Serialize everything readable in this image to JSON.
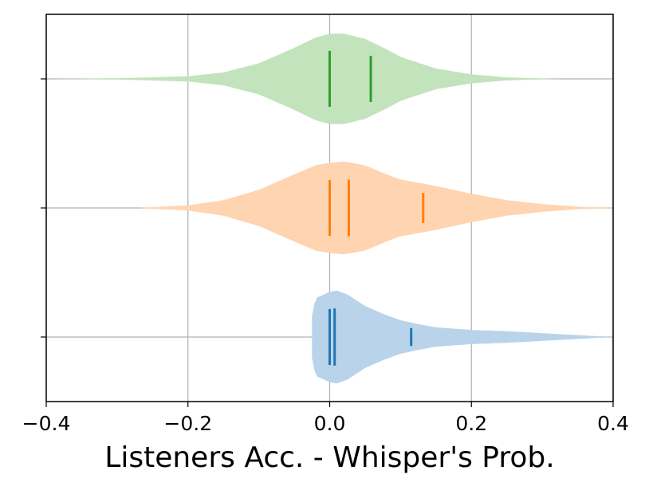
{
  "chart_data": {
    "type": "violin",
    "orientation": "horizontal",
    "title": "",
    "xlabel": "Listeners Acc. - Whisper's Prob.",
    "ylabel": "",
    "xlim": [
      -0.4,
      0.4
    ],
    "xticks": [
      -0.4,
      -0.2,
      0.0,
      0.2,
      0.4
    ],
    "xtick_labels": [
      "−0.4",
      "−0.2",
      "0.0",
      "0.2",
      "0.4"
    ],
    "yticks": [
      1,
      2,
      3
    ],
    "ytick_labels": [
      "",
      "",
      ""
    ],
    "grid": true,
    "legend": "none",
    "series": [
      {
        "position": 1,
        "color": "#1f77b4",
        "fill": "#b9d3ea",
        "markers": [
          0.0,
          0.007,
          0.115
        ],
        "density": {
          "x": [
            -0.025,
            -0.02,
            0.0,
            0.01,
            0.025,
            0.05,
            0.075,
            0.1,
            0.125,
            0.15,
            0.2,
            0.25,
            0.3,
            0.35,
            0.4
          ],
          "halfwidth": [
            0.16,
            0.3,
            0.35,
            0.36,
            0.33,
            0.24,
            0.18,
            0.13,
            0.1,
            0.075,
            0.055,
            0.045,
            0.03,
            0.015,
            0.0
          ]
        }
      },
      {
        "position": 2,
        "color": "#ff7f0e",
        "fill": "#ffd4b0",
        "markers": [
          0.0,
          0.027,
          0.132
        ],
        "density": {
          "x": [
            -0.27,
            -0.2,
            -0.15,
            -0.1,
            -0.05,
            -0.02,
            0.0,
            0.02,
            0.05,
            0.08,
            0.1,
            0.13,
            0.15,
            0.2,
            0.25,
            0.3,
            0.35,
            0.4
          ],
          "halfwidth": [
            0.0,
            0.02,
            0.06,
            0.14,
            0.26,
            0.33,
            0.35,
            0.36,
            0.33,
            0.26,
            0.22,
            0.19,
            0.17,
            0.11,
            0.06,
            0.03,
            0.01,
            0.0
          ]
        }
      },
      {
        "position": 3,
        "color": "#2ca02c",
        "fill": "#c2e3bb",
        "markers": [
          0.0,
          0.058
        ],
        "density": {
          "x": [
            -0.4,
            -0.3,
            -0.2,
            -0.15,
            -0.1,
            -0.05,
            -0.02,
            0.0,
            0.02,
            0.05,
            0.08,
            0.1,
            0.15,
            0.2,
            0.25,
            0.3,
            0.33
          ],
          "halfwidth": [
            0.0,
            0.005,
            0.02,
            0.05,
            0.12,
            0.24,
            0.32,
            0.35,
            0.35,
            0.31,
            0.23,
            0.17,
            0.08,
            0.035,
            0.012,
            0.003,
            0.0
          ]
        }
      }
    ]
  }
}
